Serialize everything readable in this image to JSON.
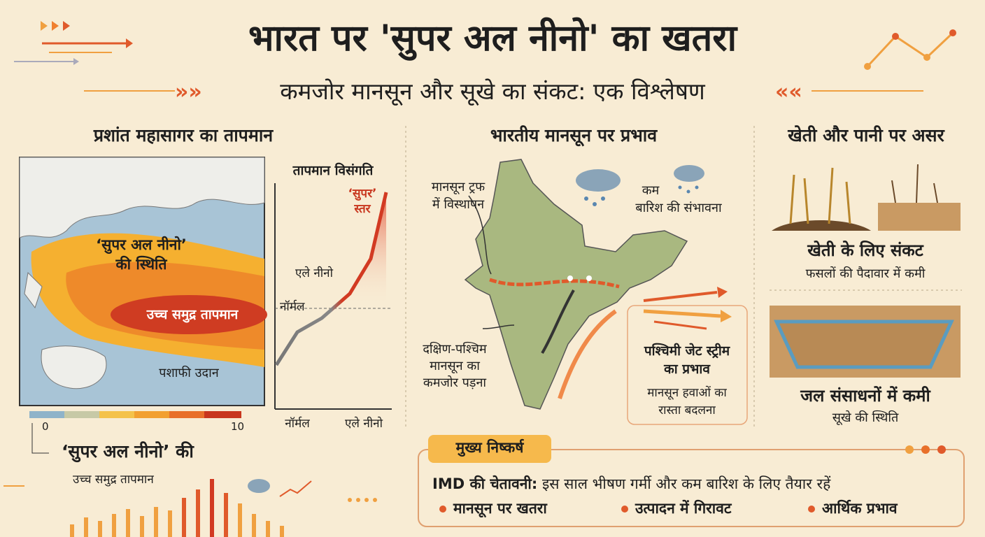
{
  "header": {
    "title": "भारत पर 'सुपर अल नीनो' का खतरा",
    "subtitle": "कमजोर मानसून और सूखे का संकट: एक विश्लेषण"
  },
  "pacific": {
    "heading": "प्रशांत महासागर का तापमान",
    "map_labels": {
      "super_el_nino": [
        "‘सुपर अल नीनो’",
        "की स्थिति"
      ],
      "high_temp": "उच्च समुद्र तापमान",
      "pacific": "पशाफी उदान"
    },
    "colorbar": {
      "min": 0,
      "max": 10
    },
    "anomaly": {
      "title": "तापमान विसंगति",
      "super_level": [
        "‘सुपर’",
        "स्तर"
      ],
      "el_nino": "एले नीनो",
      "normal": "नॉर्मल",
      "x_labels": [
        "नॉर्मल",
        "एले नीनो"
      ]
    },
    "caption": [
      "‘सुपर अल नीनो’ की",
      "उच्च समुद्र तापमान"
    ]
  },
  "monsoon": {
    "heading": "भारतीय मानसून पर प्रभाव",
    "trough": [
      "मानसून ट्रफ",
      "में विस्थापन"
    ],
    "less_rain": [
      "कम",
      "बारिश की संभावना"
    ],
    "southwest": [
      "दक्षिण-पश्चिम",
      "मानसून का",
      "कमजोर पड़ना"
    ],
    "jet_stream": {
      "title": [
        "पश्चिमी जेट स्ट्रीम",
        "का प्रभाव"
      ],
      "text": [
        "मानसून हवाओं का",
        "रास्ता बदलना"
      ]
    }
  },
  "impact": {
    "heading": "खेती और पानी पर असर",
    "farming": {
      "title": "खेती के लिए संकट",
      "text": "फसलों की पैदावार में कमी"
    },
    "water": {
      "title": "जल संसाधनों में कमी",
      "text": "सूखे की स्थिति"
    }
  },
  "findings": {
    "tag": "मुख्य निष्कर्ष",
    "warning_label": "IMD की चेतावनी:",
    "warning_text": "इस साल भीषण गर्मी और कम बारिश के लिए तैयार रहें",
    "points": [
      "मानसून पर खतरा",
      "उत्पादन में गिरावट",
      "आर्थिक प्रभाव"
    ]
  }
}
